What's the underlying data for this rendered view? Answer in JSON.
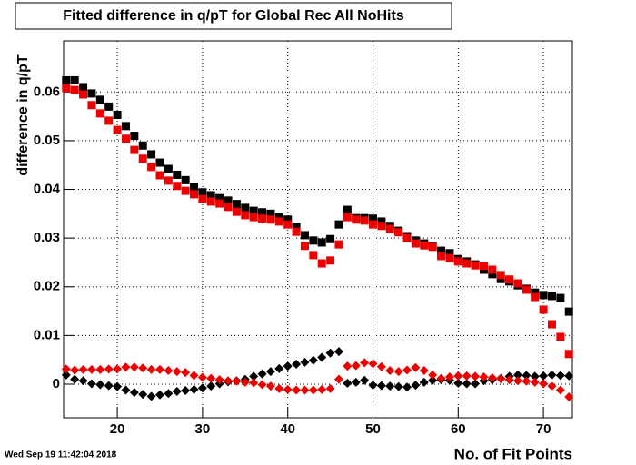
{
  "chart_data": {
    "type": "scatter",
    "title": "Fitted difference in q/pT for Global Rec All NoHits",
    "x_label": "No. of Fit Points",
    "y_label": "difference in q/pT",
    "timestamp": "Wed Sep 19 11:42:04 2018",
    "x": [
      14,
      15,
      16,
      17,
      18,
      19,
      20,
      21,
      22,
      23,
      24,
      25,
      26,
      27,
      28,
      29,
      30,
      31,
      32,
      33,
      34,
      35,
      36,
      37,
      38,
      39,
      40,
      41,
      42,
      43,
      44,
      45,
      46,
      47,
      48,
      49,
      50,
      51,
      52,
      53,
      54,
      55,
      56,
      57,
      58,
      59,
      60,
      61,
      62,
      63,
      64,
      65,
      66,
      67,
      68,
      69,
      70,
      71,
      72,
      73
    ],
    "series": [
      {
        "color": "#000000",
        "marker": "square",
        "values": [
          0.0624,
          0.0624,
          0.061,
          0.0597,
          0.0584,
          0.057,
          0.0553,
          0.053,
          0.051,
          0.049,
          0.0472,
          0.0455,
          0.0442,
          0.043,
          0.0419,
          0.0405,
          0.0394,
          0.0388,
          0.0382,
          0.0377,
          0.037,
          0.0362,
          0.0356,
          0.0353,
          0.035,
          0.0343,
          0.0338,
          0.0323,
          0.0306,
          0.0295,
          0.0291,
          0.0298,
          0.0328,
          0.0358,
          0.0341,
          0.0341,
          0.034,
          0.0334,
          0.0325,
          0.0315,
          0.0304,
          0.0295,
          0.0289,
          0.0284,
          0.0274,
          0.0269,
          0.0257,
          0.0252,
          0.0246,
          0.0235,
          0.0226,
          0.0216,
          0.0211,
          0.0203,
          0.0196,
          0.0188,
          0.0183,
          0.0181,
          0.0177,
          0.0149
        ]
      },
      {
        "color": "#ee0000",
        "marker": "square",
        "values": [
          0.0608,
          0.0604,
          0.0595,
          0.0573,
          0.0556,
          0.0541,
          0.0522,
          0.0504,
          0.0481,
          0.0463,
          0.0446,
          0.0429,
          0.0418,
          0.0407,
          0.0397,
          0.039,
          0.038,
          0.0375,
          0.0371,
          0.0364,
          0.0354,
          0.0347,
          0.0343,
          0.034,
          0.0338,
          0.0334,
          0.0328,
          0.0313,
          0.0284,
          0.0265,
          0.0248,
          0.0254,
          0.0287,
          0.0343,
          0.0338,
          0.0336,
          0.0328,
          0.0325,
          0.0319,
          0.0312,
          0.03,
          0.0289,
          0.0285,
          0.0282,
          0.0263,
          0.0259,
          0.0252,
          0.0248,
          0.0244,
          0.0243,
          0.0235,
          0.0224,
          0.0215,
          0.0207,
          0.0194,
          0.0179,
          0.0153,
          0.0123,
          0.0097,
          0.0062
        ]
      },
      {
        "color": "#000000",
        "marker": "diamond",
        "values": [
          0.0019,
          0.001,
          0.0007,
          0.0001,
          -0.0001,
          -0.0003,
          -0.0005,
          -0.0012,
          -0.0017,
          -0.0021,
          -0.0025,
          -0.0022,
          -0.0019,
          -0.0015,
          -0.0013,
          -0.0011,
          -0.0008,
          -0.0004,
          0.0001,
          0.0005,
          0.0007,
          0.001,
          0.0016,
          0.0021,
          0.0026,
          0.0032,
          0.0037,
          0.0041,
          0.0045,
          0.0049,
          0.0055,
          0.0064,
          0.0067,
          0.0002,
          0.0004,
          0.0008,
          -0.0002,
          -0.0003,
          -0.0004,
          -0.0005,
          -0.0006,
          -0.0002,
          0.0004,
          0.0008,
          0.0009,
          0.0008,
          0.0002,
          0.0001,
          0.0001,
          0.0007,
          0.0009,
          0.0012,
          0.0016,
          0.0019,
          0.0018,
          0.0016,
          0.0017,
          0.0019,
          0.0018,
          0.0017
        ]
      },
      {
        "color": "#ee0000",
        "marker": "diamond",
        "values": [
          0.0031,
          0.0029,
          0.003,
          0.003,
          0.003,
          0.0031,
          0.0031,
          0.0035,
          0.0035,
          0.0033,
          0.003,
          0.003,
          0.0028,
          0.0026,
          0.0024,
          0.0018,
          0.0014,
          0.0012,
          0.0009,
          0.0007,
          0.0006,
          0.0004,
          0.0003,
          -0.0001,
          -0.0004,
          -0.0009,
          -0.0011,
          -0.0012,
          -0.0012,
          -0.0012,
          -0.0011,
          -0.0009,
          0.001,
          0.0037,
          0.0038,
          0.0044,
          0.0042,
          0.0036,
          0.0028,
          0.0026,
          0.0029,
          0.0034,
          0.0028,
          0.0019,
          0.0012,
          0.0015,
          0.0017,
          0.0017,
          0.0016,
          0.0015,
          0.0013,
          0.0011,
          0.0009,
          0.0007,
          0.0006,
          0.0004,
          0.0001,
          -0.0004,
          -0.0012,
          -0.0026
        ]
      }
    ],
    "xlim": [
      13.7,
      73.4
    ],
    "xticks": [
      20,
      30,
      40,
      50,
      60,
      70
    ],
    "ylim": [
      -0.0069,
      0.0705
    ],
    "yticks": [
      0,
      0.01,
      0.02,
      0.03,
      0.04,
      0.05,
      0.06
    ],
    "grid": true
  }
}
